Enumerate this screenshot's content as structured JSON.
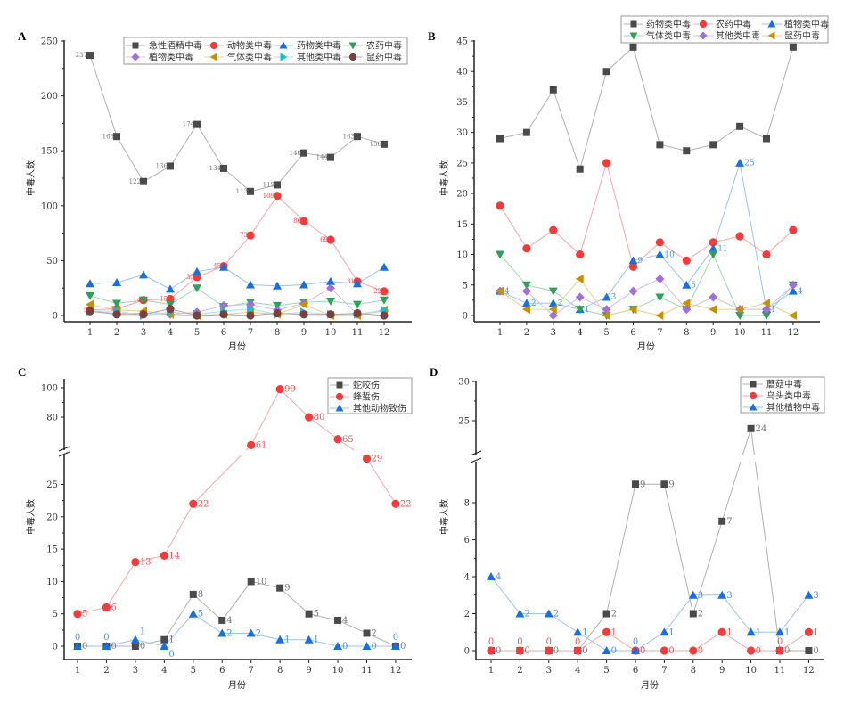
{
  "chart_data": [
    {
      "panel": "A",
      "type": "line",
      "xlabel": "月份",
      "ylabel": "中毒人数",
      "categories": [
        "1",
        "2",
        "3",
        "4",
        "5",
        "6",
        "7",
        "8",
        "9",
        "10",
        "11",
        "12"
      ],
      "y_segments": [
        [
          0,
          250
        ]
      ],
      "y_ticks": [
        [
          0,
          50,
          100,
          150,
          200,
          250
        ]
      ],
      "legend_columns": 4,
      "legend_placement": "top-right",
      "series": [
        {
          "name": "急性酒精中毒",
          "marker": "square",
          "color": "#4a4a4a",
          "line_color": "#b0b0b0",
          "labels": "left",
          "values": [
            237,
            163,
            122,
            136,
            174,
            134,
            113,
            119,
            148,
            144,
            163,
            156
          ]
        },
        {
          "name": "动物类中毒",
          "marker": "circle",
          "color": "#f23c3c",
          "line_color": "#f8a5a5",
          "labels": "left",
          "values": [
            5,
            6,
            14,
            15,
            35,
            45,
            73,
            109,
            86,
            69,
            31,
            22
          ]
        },
        {
          "name": "药物类中毒",
          "marker": "triangle-up",
          "color": "#1a6fdf",
          "line_color": "#9cc0f0",
          "values": [
            29,
            30,
            37,
            24,
            40,
            44,
            28,
            27,
            28,
            31,
            29,
            44
          ]
        },
        {
          "name": "农药中毒",
          "marker": "triangle-down",
          "color": "#2ea05a",
          "line_color": "#9fd6b2",
          "values": [
            18,
            11,
            14,
            10,
            25,
            8,
            12,
            9,
            12,
            13,
            10,
            14
          ]
        },
        {
          "name": "植物类中毒",
          "marker": "diamond",
          "color": "#a070d8",
          "line_color": "#d0bcef",
          "values": [
            4,
            2,
            2,
            1,
            3,
            9,
            10,
            5,
            11,
            25,
            1,
            4
          ]
        },
        {
          "name": "气体类中毒",
          "marker": "triangle-left",
          "color": "#c89000",
          "line_color": "#e8cf8a",
          "values": [
            10,
            5,
            4,
            1,
            0,
            1,
            3,
            1,
            10,
            0,
            0,
            5
          ]
        },
        {
          "name": "其他类中毒",
          "marker": "triangle-right",
          "color": "#18c0d0",
          "line_color": "#9ee6ee",
          "values": [
            4,
            4,
            0,
            3,
            1,
            4,
            6,
            1,
            3,
            1,
            1,
            5
          ]
        },
        {
          "name": "鼠药中毒",
          "marker": "circle",
          "color": "#7a4040",
          "line_color": "#c0a0a0",
          "values": [
            4,
            1,
            1,
            6,
            0,
            1,
            0,
            2,
            1,
            1,
            2,
            0
          ]
        }
      ]
    },
    {
      "panel": "B",
      "type": "line",
      "xlabel": "月份",
      "ylabel": "中毒人数",
      "categories": [
        "1",
        "2",
        "3",
        "4",
        "5",
        "6",
        "7",
        "8",
        "9",
        "10",
        "11",
        "12"
      ],
      "y_segments": [
        [
          0,
          45
        ]
      ],
      "y_ticks": [
        [
          0,
          5,
          10,
          15,
          20,
          25,
          30,
          35,
          40,
          45
        ]
      ],
      "legend_columns": 3,
      "legend_placement": "top-right",
      "series": [
        {
          "name": "药物类中毒",
          "marker": "square",
          "color": "#4a4a4a",
          "line_color": "#b0b0b0",
          "values": [
            29,
            30,
            37,
            24,
            40,
            44,
            28,
            27,
            28,
            31,
            29,
            44
          ]
        },
        {
          "name": "农药中毒",
          "marker": "circle",
          "color": "#f23c3c",
          "line_color": "#f8a5a5",
          "values": [
            18,
            11,
            14,
            10,
            25,
            8,
            12,
            9,
            12,
            13,
            10,
            14
          ]
        },
        {
          "name": "植物类中毒",
          "marker": "triangle-up",
          "color": "#1a6fdf",
          "line_color": "#9cc0f0",
          "labels": "right",
          "values": [
            4,
            2,
            2,
            1,
            3,
            9,
            10,
            5,
            11,
            25,
            1,
            4
          ]
        },
        {
          "name": "气体类中毒",
          "marker": "triangle-down",
          "color": "#2ea05a",
          "line_color": "#9fd6b2",
          "values": [
            10,
            5,
            4,
            1,
            0,
            1,
            3,
            1,
            10,
            0,
            0,
            5
          ]
        },
        {
          "name": "其他类中毒",
          "marker": "diamond",
          "color": "#a070d8",
          "line_color": "#d0bcef",
          "values": [
            4,
            4,
            0,
            3,
            1,
            4,
            6,
            1,
            3,
            1,
            1,
            5
          ]
        },
        {
          "name": "鼠药中毒",
          "marker": "triangle-left",
          "color": "#c89000",
          "line_color": "#e8cf8a",
          "values": [
            4,
            1,
            1,
            6,
            0,
            1,
            0,
            2,
            1,
            1,
            2,
            0
          ]
        }
      ]
    },
    {
      "panel": "C",
      "type": "line",
      "xlabel": "月份",
      "ylabel": "中毒人数",
      "categories": [
        "1",
        "2",
        "3",
        "4",
        "5",
        "6",
        "7",
        "8",
        "9",
        "10",
        "11",
        "12"
      ],
      "y_segments": [
        [
          0,
          25
        ],
        [
          80,
          100
        ]
      ],
      "y_ticks": [
        [
          0,
          5,
          10,
          15,
          20,
          25
        ],
        [
          80,
          100
        ]
      ],
      "y_axis_break": true,
      "legend_columns": 1,
      "legend_placement": "top-right",
      "series": [
        {
          "name": "蛇咬伤",
          "marker": "square",
          "color": "#4a4a4a",
          "line_color": "#b0b0b0",
          "labels": "right",
          "values": [
            0,
            0,
            0,
            1,
            8,
            4,
            10,
            9,
            5,
            4,
            2,
            0
          ]
        },
        {
          "name": "蜂蜇伤",
          "marker": "circle",
          "color": "#f23c3c",
          "line_color": "#f8a5a5",
          "labels": "right",
          "values": [
            5,
            6,
            13,
            14,
            22,
            null,
            61,
            99,
            80,
            65,
            29,
            22
          ]
        },
        {
          "name": "其他动物致伤",
          "marker": "triangle-up",
          "color": "#1a6fdf",
          "line_color": "#9cc0f0",
          "labels": "right",
          "values": [
            0,
            0,
            1,
            0,
            5,
            2,
            2,
            1,
            1,
            0,
            0,
            0
          ]
        }
      ]
    },
    {
      "panel": "D",
      "type": "line",
      "xlabel": "月份",
      "ylabel": "中毒人数",
      "categories": [
        "1",
        "2",
        "3",
        "4",
        "5",
        "6",
        "7",
        "8",
        "9",
        "10",
        "11",
        "12"
      ],
      "y_segments": [
        [
          0,
          8
        ],
        [
          25,
          30
        ]
      ],
      "y_ticks": [
        [
          0,
          2,
          4,
          6,
          8
        ],
        [
          25,
          30
        ]
      ],
      "y_axis_break": true,
      "legend_columns": 1,
      "legend_placement": "top-right",
      "series": [
        {
          "name": "蘑菇中毒",
          "marker": "square",
          "color": "#4a4a4a",
          "line_color": "#b0b0b0",
          "labels": "right",
          "values": [
            0,
            0,
            0,
            0,
            2,
            9,
            9,
            2,
            7,
            24,
            0,
            0
          ]
        },
        {
          "name": "乌头类中毒",
          "marker": "circle",
          "color": "#f23c3c",
          "line_color": "#f8a5a5",
          "labels": "right",
          "values": [
            0,
            0,
            0,
            0,
            1,
            0,
            0,
            0,
            1,
            0,
            0,
            1
          ]
        },
        {
          "name": "其他植物中毒",
          "marker": "triangle-up",
          "color": "#1a6fdf",
          "line_color": "#9cc0f0",
          "labels": "right",
          "values": [
            4,
            2,
            2,
            1,
            0,
            0,
            1,
            3,
            3,
            1,
            1,
            3
          ]
        }
      ]
    }
  ]
}
